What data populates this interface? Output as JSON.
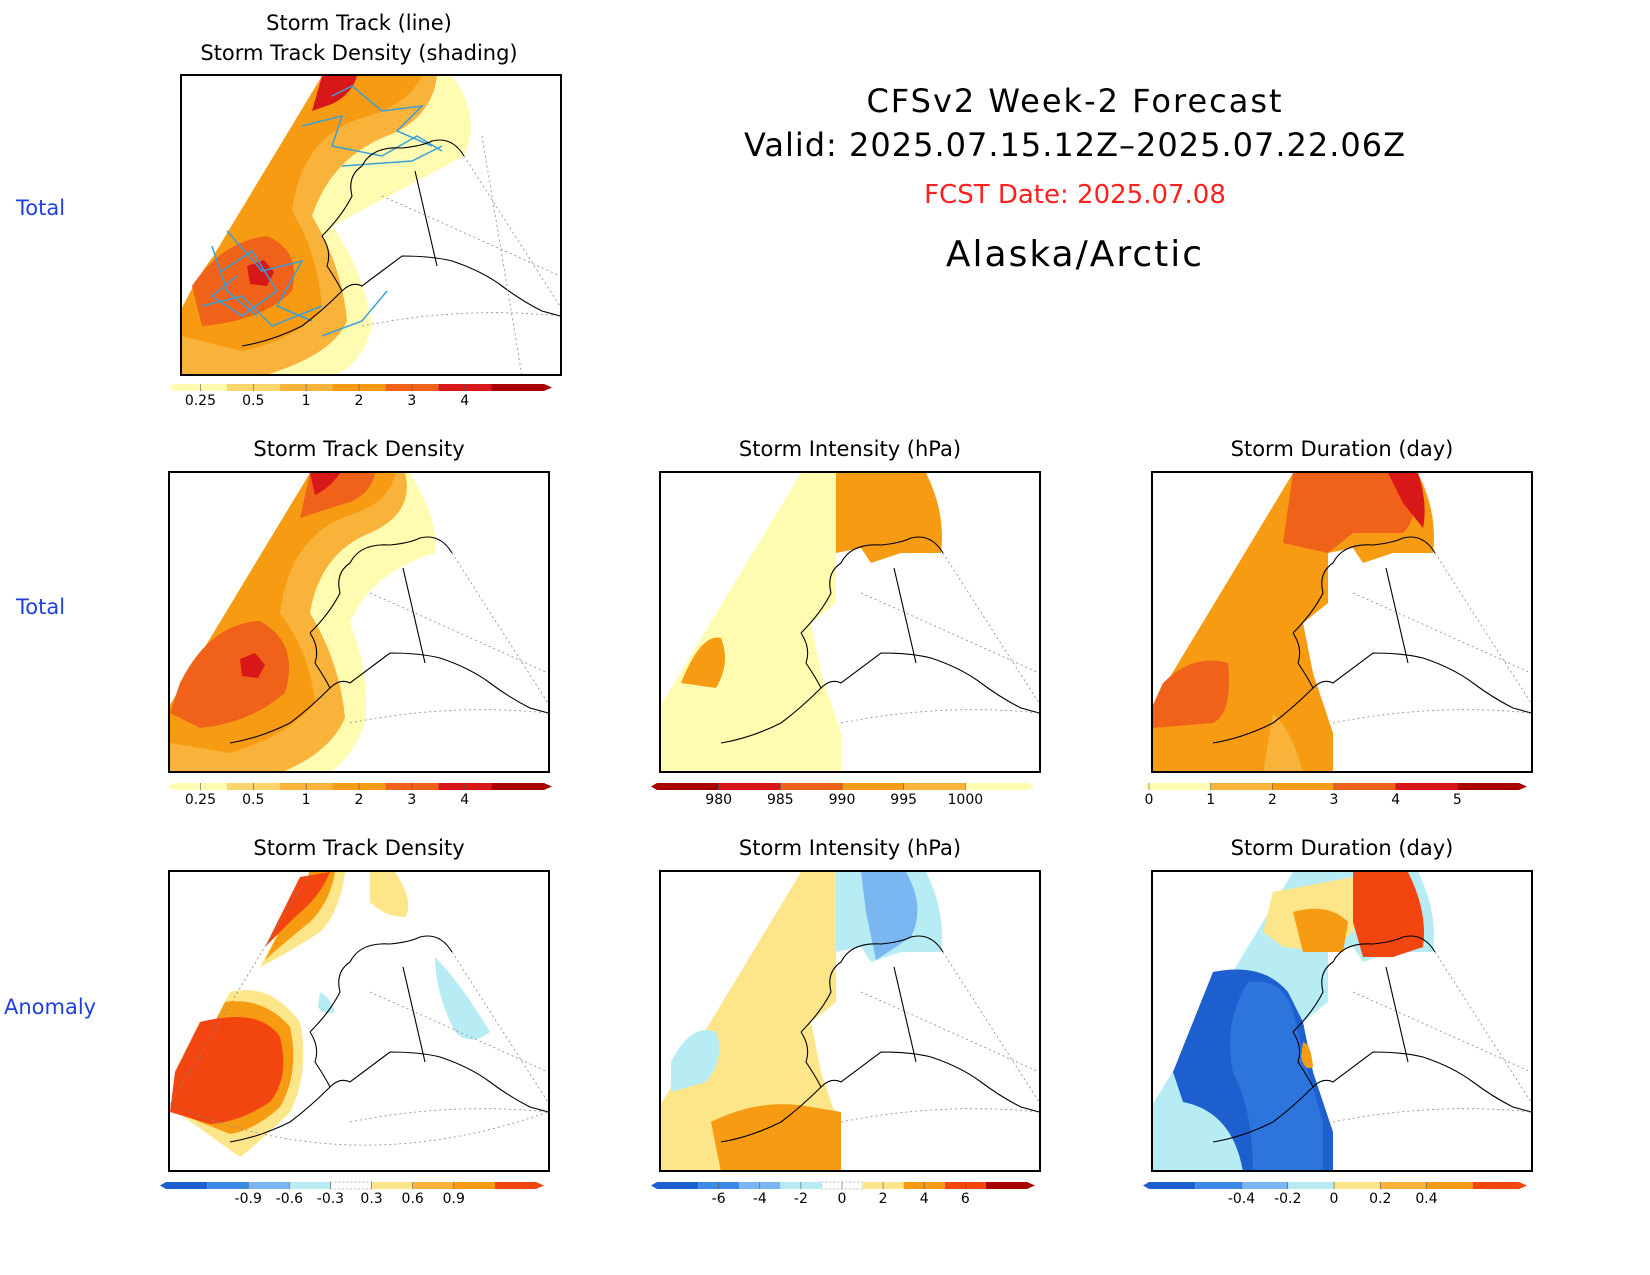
{
  "header": {
    "title_line1": "CFSv2 Week-2 Forecast",
    "title_line2": "Valid: 2025.07.15.12Z–2025.07.22.06Z",
    "fcst_date": "FCST Date: 2025.07.08",
    "region": "Alaska/Arctic",
    "fcst_color": "#ff2020"
  },
  "rows": [
    {
      "label": "Total"
    },
    {
      "label": "Total"
    },
    {
      "label": "Anomaly"
    }
  ],
  "panels": {
    "p1": {
      "title1": "Storm Track (line)",
      "title2": "Storm Track Density (shading)"
    },
    "p2": {
      "title": "Storm Track Density"
    },
    "p3": {
      "title": "Storm Intensity (hPa)"
    },
    "p4": {
      "title": "Storm Duration (day)"
    },
    "p5": {
      "title": "Storm Track Density"
    },
    "p6": {
      "title": "Storm Intensity (hPa)"
    },
    "p7": {
      "title": "Storm Duration (day)"
    }
  },
  "colorbars": {
    "density": {
      "labels": [
        "0.25",
        "0.5",
        "1",
        "2",
        "3",
        "4"
      ],
      "colors": [
        "#fffbb0",
        "#fcd56c",
        "#f9b23a",
        "#f79c12",
        "#f0621a",
        "#d81818",
        "#a80000"
      ]
    },
    "intensity": {
      "labels": [
        "980",
        "985",
        "990",
        "995",
        "1000"
      ],
      "colors": [
        "#a80000",
        "#d81818",
        "#f0621a",
        "#f79c12",
        "#f9b23a",
        "#fffbb0"
      ]
    },
    "duration": {
      "labels": [
        "0",
        "1",
        "2",
        "3",
        "4",
        "5"
      ],
      "colors": [
        "#fffbb0",
        "#f9b23a",
        "#f79c12",
        "#f0621a",
        "#d81818",
        "#a80000"
      ]
    },
    "density_anom": {
      "labels": [
        "-0.9",
        "-0.6",
        "-0.3",
        "0.3",
        "0.6",
        "0.9"
      ],
      "colors": [
        "#1e5fd0",
        "#3c8ae8",
        "#7ab6f2",
        "#b7ecf5",
        "#ffffff",
        "#fde58a",
        "#f9b23a",
        "#f79c12",
        "#f2450f"
      ]
    },
    "intensity_anom": {
      "labels": [
        "-6",
        "-4",
        "-2",
        "0",
        "2",
        "4",
        "6"
      ],
      "colors": [
        "#1e5fd0",
        "#3c8ae8",
        "#7ab6f2",
        "#b7ecf5",
        "#ffffff",
        "#fde58a",
        "#f79c12",
        "#f2450f",
        "#a80000"
      ]
    },
    "duration_anom": {
      "labels": [
        "-0.4",
        "-0.2",
        "0",
        "0.2",
        "0.4"
      ],
      "colors": [
        "#1e5fd0",
        "#3c8ae8",
        "#7ab6f2",
        "#b7ecf5",
        "#fde58a",
        "#f9b23a",
        "#f79c12",
        "#f2450f"
      ]
    }
  }
}
